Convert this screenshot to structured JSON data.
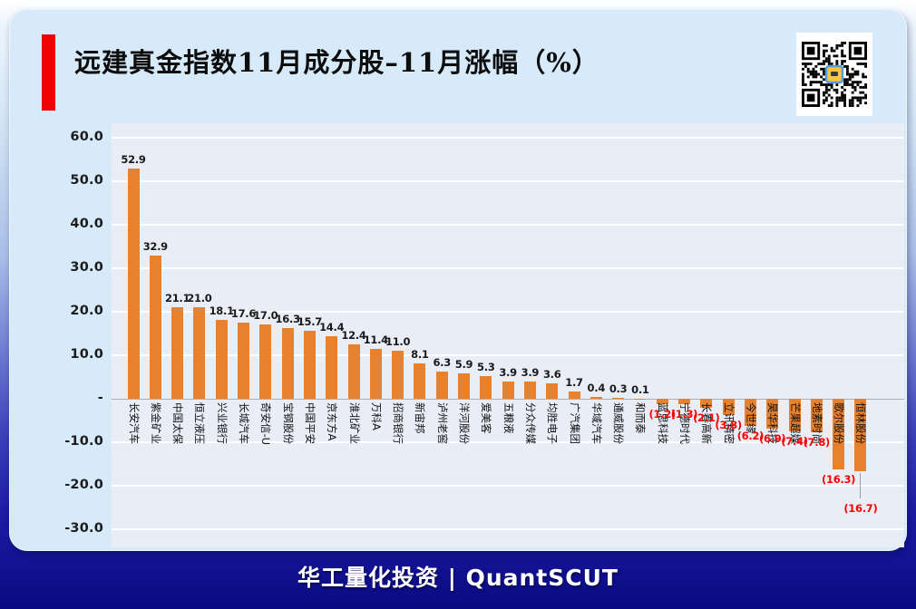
{
  "header": {
    "title": "远建真金指数11月成分股–11月涨幅（%）"
  },
  "icons": {
    "qr_code": "qr-code"
  },
  "colors": {
    "accent_red": "#EE0101",
    "bar_orange": "#E8812D",
    "negative_label": "#FF0000",
    "card_bg": "#D6EAFA",
    "plot_bg": "#E9EDF5",
    "footer_navy": "#12129A"
  },
  "chart_data": {
    "type": "bar",
    "title": "远建真金指数11月成分股–11月涨幅（%）",
    "xlabel": "",
    "ylabel": "",
    "ylim": [
      -30,
      60
    ],
    "grid": true,
    "legend": "none",
    "bar_color": "#E8812D",
    "negative_value_format": "(abs)",
    "categories": [
      "长安汽车",
      "紫金矿业",
      "中国太保",
      "恒立液压",
      "兴业银行",
      "长城汽车",
      "奇安信-U",
      "宝钢股份",
      "中国平安",
      "京东方A",
      "淮北矿业",
      "万科A",
      "招商银行",
      "新宙邦",
      "泸州老窖",
      "洋河股份",
      "爱美客",
      "五粮液",
      "分众传媒",
      "均胜电子",
      "广汽集团",
      "华域汽车",
      "通威股份",
      "和而泰",
      "蓝思科技",
      "宁德时代",
      "长春高新",
      "立讯精密",
      "今世缘",
      "昊华科技",
      "芒果超媒",
      "地素时尚",
      "歌尔股份",
      "恒林股份"
    ],
    "values": [
      52.9,
      32.9,
      21.1,
      21.0,
      18.1,
      17.6,
      17.0,
      16.3,
      15.7,
      14.4,
      12.4,
      11.4,
      11.0,
      8.1,
      6.3,
      5.9,
      5.3,
      3.9,
      3.9,
      3.6,
      1.7,
      0.4,
      0.3,
      0.1,
      -1.2,
      -1.3,
      -2.1,
      -3.8,
      -6.2,
      -6.9,
      -7.4,
      -7.8,
      -16.3,
      -16.7
    ],
    "y_ticks": [
      {
        "value": 60,
        "label": "60.0"
      },
      {
        "value": 50,
        "label": "50.0"
      },
      {
        "value": 40,
        "label": "40.0"
      },
      {
        "value": 30,
        "label": "30.0"
      },
      {
        "value": 20,
        "label": "20.0"
      },
      {
        "value": 10,
        "label": "10.0"
      },
      {
        "value": 0,
        "label": "-"
      },
      {
        "value": -10,
        "label": "-10.0"
      },
      {
        "value": -20,
        "label": "-20.0"
      },
      {
        "value": -30,
        "label": "-30.0"
      }
    ]
  },
  "footer": {
    "text": "华工量化投资 | QuantSCUT"
  }
}
